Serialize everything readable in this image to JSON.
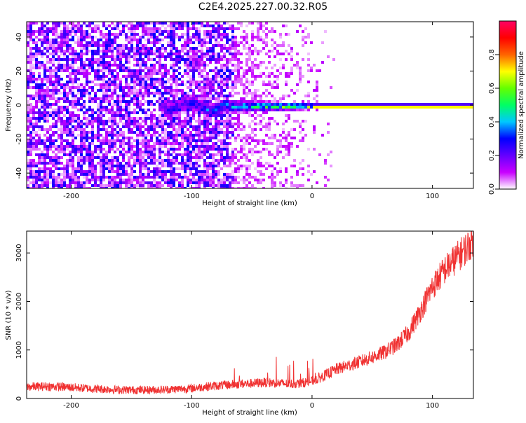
{
  "page": {
    "title": "C2E4.2025.227.00.32.R05"
  },
  "chart_data": [
    {
      "type": "heatmap",
      "xlabel": "Height of straight line (km)",
      "ylabel": "Frequency (Hz)",
      "xlim": [
        -237,
        134
      ],
      "ylim": [
        -49,
        49
      ],
      "x_ticks": [
        -200,
        -100,
        0,
        100
      ],
      "y_ticks": [
        -40,
        -20,
        0,
        20,
        40
      ],
      "colorbar": {
        "label": "Normalized spectral amplitude",
        "range": [
          0,
          1
        ],
        "ticks": [
          "0.0",
          "0.2",
          "0.4",
          "0.6",
          "0.8"
        ],
        "colors": [
          "#ffffff",
          "#c800ff",
          "#6400ff",
          "#0000ff",
          "#00c8ff",
          "#00ff64",
          "#64ff00",
          "#ffff00",
          "#ff6400",
          "#ff0000",
          "#ff0064"
        ]
      },
      "description_regions": {
        "noise_broadband_end_km": -65,
        "sparse_noise_end_km": 20,
        "signal_line_frequency_hz": 0,
        "signal_strong_from_km": 0
      }
    },
    {
      "type": "line",
      "xlabel": "Height of straight line (km)",
      "ylabel": "SNR (10 * v/v)",
      "xlim": [
        -237,
        134
      ],
      "ylim": [
        0,
        3450
      ],
      "x_ticks": [
        -200,
        -100,
        0,
        100
      ],
      "y_ticks": [
        0,
        1000,
        2000,
        3000
      ],
      "color": "#f03232",
      "series": [
        {
          "x": [
            -237,
            -220,
            -200,
            -180,
            -160,
            -140,
            -120,
            -100,
            -90,
            -80,
            -70,
            -60,
            -50,
            -40,
            -30,
            -20,
            -10,
            0,
            10,
            20,
            30,
            40,
            50,
            60,
            70,
            80,
            90,
            100,
            110,
            120,
            130,
            134
          ],
          "y": [
            240,
            250,
            230,
            200,
            180,
            175,
            185,
            210,
            240,
            260,
            280,
            300,
            310,
            330,
            320,
            300,
            310,
            360,
            470,
            600,
            680,
            760,
            850,
            950,
            1100,
            1350,
            1800,
            2300,
            2650,
            2900,
            3150,
            3300
          ]
        }
      ]
    }
  ]
}
